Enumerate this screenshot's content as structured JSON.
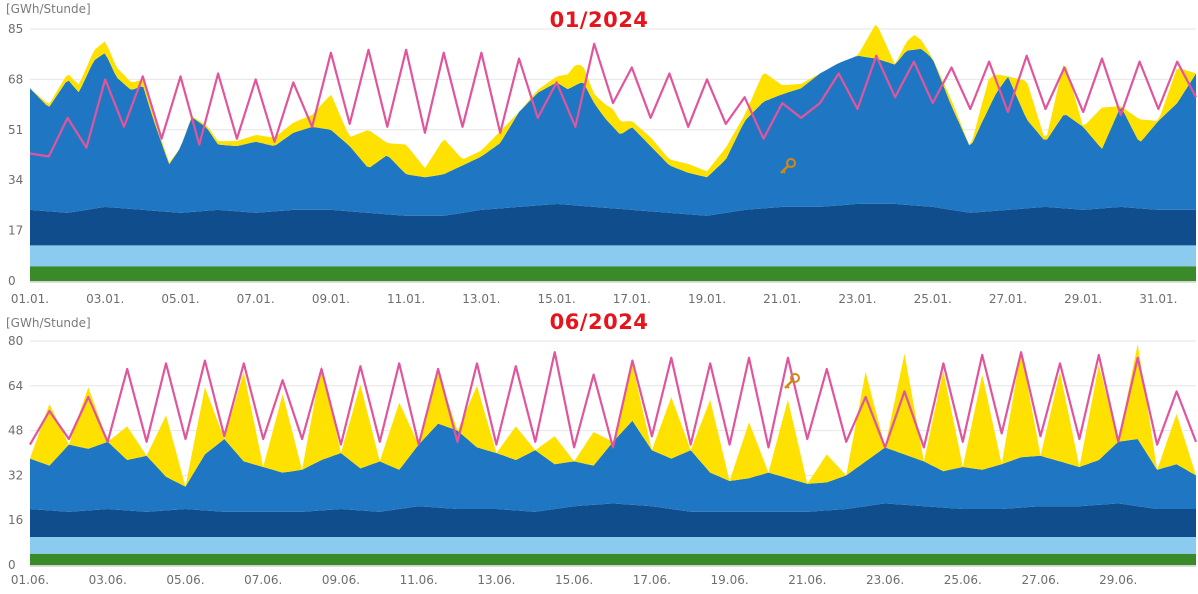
{
  "chart_data": [
    {
      "type": "area",
      "title": "01/2024",
      "unit_label": "[GWh/Stunde]",
      "ylim": [
        0,
        85
      ],
      "yticks": [
        "0",
        "17",
        "34",
        "51",
        "68",
        "85"
      ],
      "xlim": [
        1,
        32
      ],
      "xticks": [
        "01.01.",
        "03.01.",
        "05.01.",
        "07.01.",
        "09.01.",
        "11.01.",
        "13.01.",
        "15.01.",
        "17.01.",
        "19.01.",
        "21.01.",
        "23.01.",
        "25.01.",
        "27.01.",
        "29.01.",
        "31.01."
      ],
      "grid": true,
      "series": [
        {
          "color": "#3a8a2a",
          "day": [
            1,
            32
          ],
          "values": [
            5,
            5
          ]
        },
        {
          "color": "#8ccbf0",
          "day": [
            1,
            32
          ],
          "values": [
            7,
            7
          ]
        },
        {
          "color": "#0f4d8c",
          "day": [
            1,
            2,
            3,
            4,
            5,
            6,
            7,
            8,
            9,
            10,
            11,
            12,
            13,
            14,
            15,
            16,
            17,
            18,
            19,
            20,
            21,
            22,
            23,
            24,
            25,
            26,
            27,
            28,
            29,
            30,
            31,
            32
          ],
          "values": [
            12,
            11,
            13,
            12,
            11,
            12,
            11,
            12,
            12,
            11,
            10,
            10,
            12,
            13,
            14,
            13,
            12,
            11,
            10,
            12,
            13,
            13,
            14,
            14,
            13,
            11,
            12,
            13,
            12,
            13,
            12,
            12
          ]
        },
        {
          "color": "#1f77c4",
          "day": [
            1,
            1.5,
            2,
            2.3,
            2.7,
            3,
            3.3,
            3.7,
            4,
            4.3,
            4.7,
            5,
            5.3,
            5.7,
            6,
            6.5,
            7,
            7.5,
            8,
            8.5,
            9,
            9.5,
            10,
            10.5,
            11,
            11.5,
            12,
            12.5,
            13,
            13.5,
            14,
            14.5,
            15,
            15.3,
            15.7,
            16,
            16.3,
            16.7,
            17,
            17.5,
            18,
            18.5,
            19,
            19.5,
            20,
            20.5,
            21,
            21.5,
            22,
            22.5,
            23,
            23.5,
            24,
            24.3,
            24.7,
            25,
            25.5,
            26,
            26.3,
            26.7,
            27,
            27.5,
            28,
            28.5,
            29,
            29.5,
            30,
            30.5,
            31,
            31.5,
            32
          ],
          "values": [
            41,
            35,
            45,
            40,
            50,
            52,
            44,
            40,
            42,
            30,
            16,
            22,
            32,
            28,
            22,
            22,
            24,
            22,
            26,
            28,
            27,
            22,
            15,
            20,
            14,
            13,
            14,
            16,
            18,
            22,
            32,
            38,
            41,
            39,
            42,
            35,
            30,
            25,
            28,
            22,
            16,
            14,
            13,
            18,
            30,
            36,
            38,
            40,
            45,
            48,
            50,
            49,
            47,
            52,
            53,
            50,
            35,
            22,
            30,
            40,
            45,
            30,
            22,
            32,
            28,
            20,
            34,
            22,
            30,
            36,
            46
          ]
        },
        {
          "color": "#ffe100",
          "day": [
            1,
            3,
            5,
            8.5,
            9,
            9.5,
            10,
            10.5,
            11,
            11.5,
            12,
            12.5,
            13,
            13.5,
            14,
            15,
            15.5,
            16,
            16.5,
            17,
            17.5,
            18,
            18.5,
            19,
            19.5,
            20,
            20.5,
            21,
            22,
            23,
            23.5,
            24,
            24.5,
            25,
            25.5,
            26,
            26.5,
            27,
            27.5,
            28,
            28.5,
            29,
            29.5,
            30,
            30.5,
            31,
            31.5,
            32
          ],
          "values": [
            0,
            4,
            0,
            4,
            12,
            3,
            13,
            4,
            10,
            3,
            12,
            2,
            2,
            4,
            0,
            2,
            7,
            3,
            6,
            2,
            3,
            2,
            3,
            2,
            4,
            2,
            10,
            3,
            0,
            0,
            12,
            0,
            5,
            0,
            2,
            0,
            10,
            0,
            13,
            0,
            18,
            0,
            14,
            0,
            8,
            0,
            12,
            0
          ]
        },
        {
          "color": "#e0559c",
          "day": [
            1,
            1.5,
            2,
            2.5,
            3,
            3.5,
            4,
            4.5,
            5,
            5.5,
            6,
            6.5,
            7,
            7.5,
            8,
            8.5,
            9,
            9.5,
            10,
            10.5,
            11,
            11.5,
            12,
            12.5,
            13,
            13.5,
            14,
            14.5,
            15,
            15.5,
            16,
            16.5,
            17,
            17.5,
            18,
            18.5,
            19,
            19.5,
            20,
            20.5,
            21,
            21.5,
            22,
            22.5,
            23,
            23.5,
            24,
            24.5,
            25,
            25.5,
            26,
            26.5,
            27,
            27.5,
            28,
            28.5,
            29,
            29.5,
            30,
            30.5,
            31,
            31.5,
            32
          ],
          "values": [
            43,
            42,
            55,
            45,
            68,
            52,
            69,
            48,
            69,
            46,
            70,
            48,
            68,
            47,
            67,
            52,
            77,
            53,
            78,
            52,
            78,
            50,
            77,
            52,
            77,
            50,
            75,
            55,
            67,
            52,
            80,
            60,
            72,
            55,
            70,
            52,
            68,
            53,
            62,
            48,
            60,
            55,
            60,
            70,
            58,
            76,
            62,
            74,
            60,
            72,
            58,
            74,
            57,
            76,
            58,
            72,
            57,
            75,
            56,
            74,
            58,
            74,
            62
          ]
        }
      ]
    },
    {
      "type": "area",
      "title": "06/2024",
      "unit_label": "[GWh/Stunde]",
      "ylim": [
        0,
        80
      ],
      "yticks": [
        "0",
        "16",
        "32",
        "48",
        "64",
        "80"
      ],
      "xlim": [
        1,
        31
      ],
      "xticks": [
        "01.06.",
        "03.06.",
        "05.06.",
        "07.06.",
        "09.06.",
        "11.06.",
        "13.06.",
        "15.06.",
        "17.06.",
        "19.06.",
        "21.06.",
        "23.06.",
        "25.06.",
        "27.06.",
        "29.06."
      ],
      "grid": true,
      "series": [
        {
          "color": "#3a8a2a",
          "day": [
            1,
            31
          ],
          "values": [
            4,
            4
          ]
        },
        {
          "color": "#8ccbf0",
          "day": [
            1,
            31
          ],
          "values": [
            6,
            6
          ]
        },
        {
          "color": "#0f4d8c",
          "day": [
            1,
            2,
            3,
            4,
            5,
            6,
            7,
            8,
            9,
            10,
            11,
            12,
            13,
            14,
            15,
            16,
            17,
            18,
            19,
            20,
            21,
            22,
            23,
            24,
            25,
            26,
            27,
            28,
            29,
            30,
            31
          ],
          "values": [
            10,
            9,
            10,
            9,
            10,
            9,
            9,
            9,
            10,
            9,
            11,
            10,
            10,
            9,
            11,
            12,
            11,
            9,
            9,
            9,
            9,
            10,
            12,
            11,
            10,
            10,
            11,
            11,
            12,
            10,
            10
          ]
        },
        {
          "color": "#1f77c4",
          "day": [
            1,
            1.5,
            2,
            2.5,
            3,
            3.5,
            4,
            4.5,
            5,
            5.5,
            6,
            6.5,
            7,
            7.5,
            8,
            8.5,
            9,
            9.5,
            10,
            10.5,
            11,
            11.5,
            12,
            12.5,
            13,
            13.5,
            14,
            14.5,
            15,
            15.5,
            16,
            16.5,
            17,
            17.5,
            18,
            18.5,
            19,
            19.5,
            20,
            20.5,
            21,
            21.5,
            22,
            22.5,
            23,
            23.5,
            24,
            24.5,
            25,
            25.5,
            26,
            26.5,
            27,
            27.5,
            28,
            28.5,
            29,
            29.5,
            30,
            30.5,
            31
          ],
          "values": [
            18,
            16,
            24,
            22,
            24,
            18,
            20,
            12,
            8,
            20,
            26,
            18,
            16,
            14,
            15,
            18,
            20,
            15,
            18,
            14,
            22,
            30,
            28,
            22,
            20,
            18,
            22,
            16,
            16,
            14,
            22,
            30,
            20,
            18,
            22,
            14,
            11,
            12,
            14,
            12,
            10,
            10,
            12,
            16,
            20,
            18,
            16,
            13,
            15,
            14,
            16,
            18,
            18,
            16,
            14,
            16,
            22,
            24,
            14,
            16,
            12
          ]
        },
        {
          "color": "#ffe100",
          "day": [
            1,
            1.5,
            2,
            2.5,
            3,
            3.5,
            4,
            4.5,
            5,
            5.5,
            6,
            6.5,
            7,
            7.5,
            8,
            8.5,
            9,
            9.5,
            10,
            10.5,
            11,
            11.5,
            12,
            12.5,
            13,
            13.5,
            14,
            14.5,
            15,
            15.5,
            16,
            16.5,
            17,
            17.5,
            18,
            18.5,
            19,
            19.5,
            20,
            20.5,
            21,
            21.5,
            22,
            22.5,
            23,
            23.5,
            24,
            24.5,
            25,
            25.5,
            26,
            26.5,
            27,
            27.5,
            28,
            28.5,
            29,
            29.5,
            30,
            30.5,
            31
          ],
          "values": [
            0,
            22,
            0,
            22,
            0,
            12,
            0,
            22,
            0,
            24,
            0,
            32,
            0,
            28,
            0,
            34,
            0,
            30,
            0,
            24,
            0,
            18,
            0,
            22,
            0,
            12,
            0,
            10,
            0,
            12,
            0,
            20,
            0,
            22,
            0,
            26,
            0,
            20,
            0,
            28,
            0,
            10,
            0,
            32,
            0,
            36,
            0,
            36,
            0,
            34,
            0,
            38,
            0,
            32,
            0,
            34,
            0,
            34,
            0,
            18,
            0
          ]
        },
        {
          "color": "#e0559c",
          "day": [
            1,
            1.5,
            2,
            2.5,
            3,
            3.5,
            4,
            4.5,
            5,
            5.5,
            6,
            6.5,
            7,
            7.5,
            8,
            8.5,
            9,
            9.5,
            10,
            10.5,
            11,
            11.5,
            12,
            12.5,
            13,
            13.5,
            14,
            14.5,
            15,
            15.5,
            16,
            16.5,
            17,
            17.5,
            18,
            18.5,
            19,
            19.5,
            20,
            20.5,
            21,
            21.5,
            22,
            22.5,
            23,
            23.5,
            24,
            24.5,
            25,
            25.5,
            26,
            26.5,
            27,
            27.5,
            28,
            28.5,
            29,
            29.5,
            30,
            30.5,
            31
          ],
          "values": [
            43,
            55,
            45,
            60,
            44,
            70,
            44,
            72,
            45,
            73,
            46,
            72,
            45,
            66,
            45,
            70,
            43,
            71,
            44,
            72,
            43,
            70,
            44,
            72,
            43,
            71,
            44,
            76,
            42,
            68,
            42,
            73,
            46,
            74,
            43,
            72,
            43,
            74,
            42,
            74,
            45,
            70,
            44,
            60,
            42,
            62,
            42,
            72,
            44,
            75,
            47,
            76,
            46,
            72,
            45,
            75,
            44,
            74,
            43,
            62,
            44
          ]
        }
      ]
    }
  ]
}
